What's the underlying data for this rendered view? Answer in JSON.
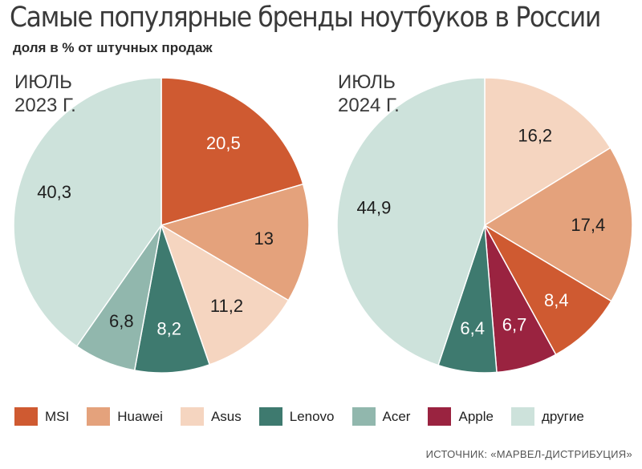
{
  "title": "Самые популярные бренды ноутбуков в России",
  "subtitle": "доля в %  от штучных продаж",
  "source": "ИСТОЧНИК: «МАРВЕЛ-ДИСТРИБУЦИЯ»",
  "colors": {
    "MSI": "#cf5a31",
    "Huawei": "#e4a27c",
    "Asus": "#f5d5c0",
    "Lenovo": "#3e7a6f",
    "Acer": "#91b7ad",
    "Apple": "#9a2340",
    "другие": "#cde2db"
  },
  "legend": [
    {
      "key": "MSI",
      "label": "MSI"
    },
    {
      "key": "Huawei",
      "label": "Huawei"
    },
    {
      "key": "Asus",
      "label": "Asus"
    },
    {
      "key": "Lenovo",
      "label": "Lenovo"
    },
    {
      "key": "Acer",
      "label": "Acer"
    },
    {
      "key": "Apple",
      "label": "Apple"
    },
    {
      "key": "другие",
      "label": "другие"
    }
  ],
  "chart_data": [
    {
      "type": "pie",
      "title_line1": "ИЮЛЬ",
      "title_line2": "2023 Г.",
      "categories": [
        "MSI",
        "Huawei",
        "Asus",
        "Lenovo",
        "Acer",
        "другие"
      ],
      "values": [
        20.5,
        13,
        11.2,
        8.2,
        6.8,
        40.3
      ],
      "labels": [
        "20,5",
        "13",
        "11,2",
        "8,2",
        "6,8",
        "40,3"
      ]
    },
    {
      "type": "pie",
      "title_line1": "ИЮЛЬ",
      "title_line2": "2024 Г.",
      "categories": [
        "Asus",
        "Huawei",
        "MSI",
        "Apple",
        "Lenovo",
        "другие"
      ],
      "values": [
        16.2,
        17.4,
        8.4,
        6.7,
        6.4,
        44.9
      ],
      "labels": [
        "16,2",
        "17,4",
        "8,4",
        "6,7",
        "6,4",
        "44,9"
      ]
    }
  ]
}
